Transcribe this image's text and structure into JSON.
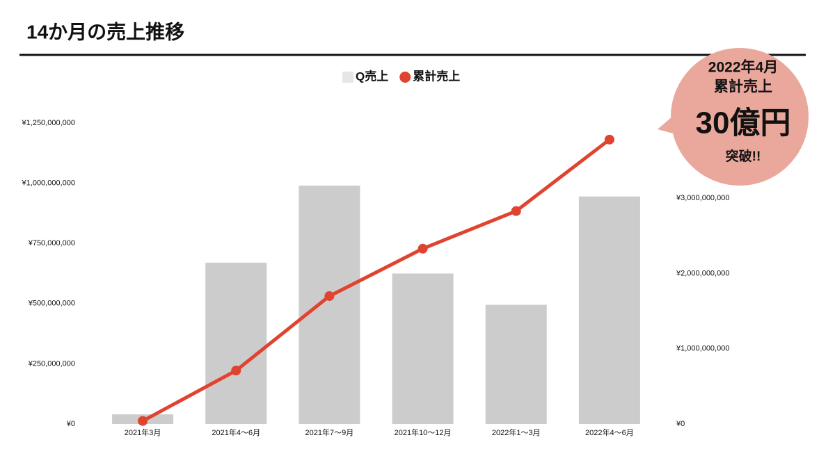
{
  "chart_data": {
    "type": "bar",
    "title": "14か月の売上推移",
    "categories": [
      "2021年3月",
      "2021年4〜6月",
      "2021年7〜9月",
      "2021年10〜12月",
      "2022年1〜3月",
      "2022年4〜6月"
    ],
    "series": [
      {
        "name": "Q売上",
        "type": "bar",
        "color": "#cccccc",
        "values": [
          40000000,
          670000000,
          990000000,
          625000000,
          495000000,
          945000000
        ]
      },
      {
        "name": "累計売上",
        "type": "line",
        "axis": "y2",
        "color": "#e0432f",
        "values": [
          40000000,
          710000000,
          1700000000,
          2330000000,
          2830000000,
          3780000000
        ]
      }
    ],
    "ylim": [
      0,
      1250000000
    ],
    "yticks": [
      {
        "value": 0,
        "label": "¥0"
      },
      {
        "value": 250000000,
        "label": "¥250,000,000"
      },
      {
        "value": 500000000,
        "label": "¥500,000,000"
      },
      {
        "value": 750000000,
        "label": "¥750,000,000"
      },
      {
        "value": 1000000000,
        "label": "¥1,000,000,000"
      },
      {
        "value": 1250000000,
        "label": "¥1,250,000,000"
      }
    ],
    "y2lim": [
      0,
      4000000000
    ],
    "y2ticks": [
      {
        "value": 0,
        "label": "¥0"
      },
      {
        "value": 1000000000,
        "label": "¥1,000,000,000"
      },
      {
        "value": 2000000000,
        "label": "¥2,000,000,000"
      },
      {
        "value": 3000000000,
        "label": "¥3,000,000,000"
      }
    ],
    "grid": false,
    "legend": "top",
    "annotation": {
      "lines": [
        "2022年4月",
        "累計売上",
        "30億円",
        "突破!!"
      ],
      "color": "#eaa89c"
    }
  }
}
